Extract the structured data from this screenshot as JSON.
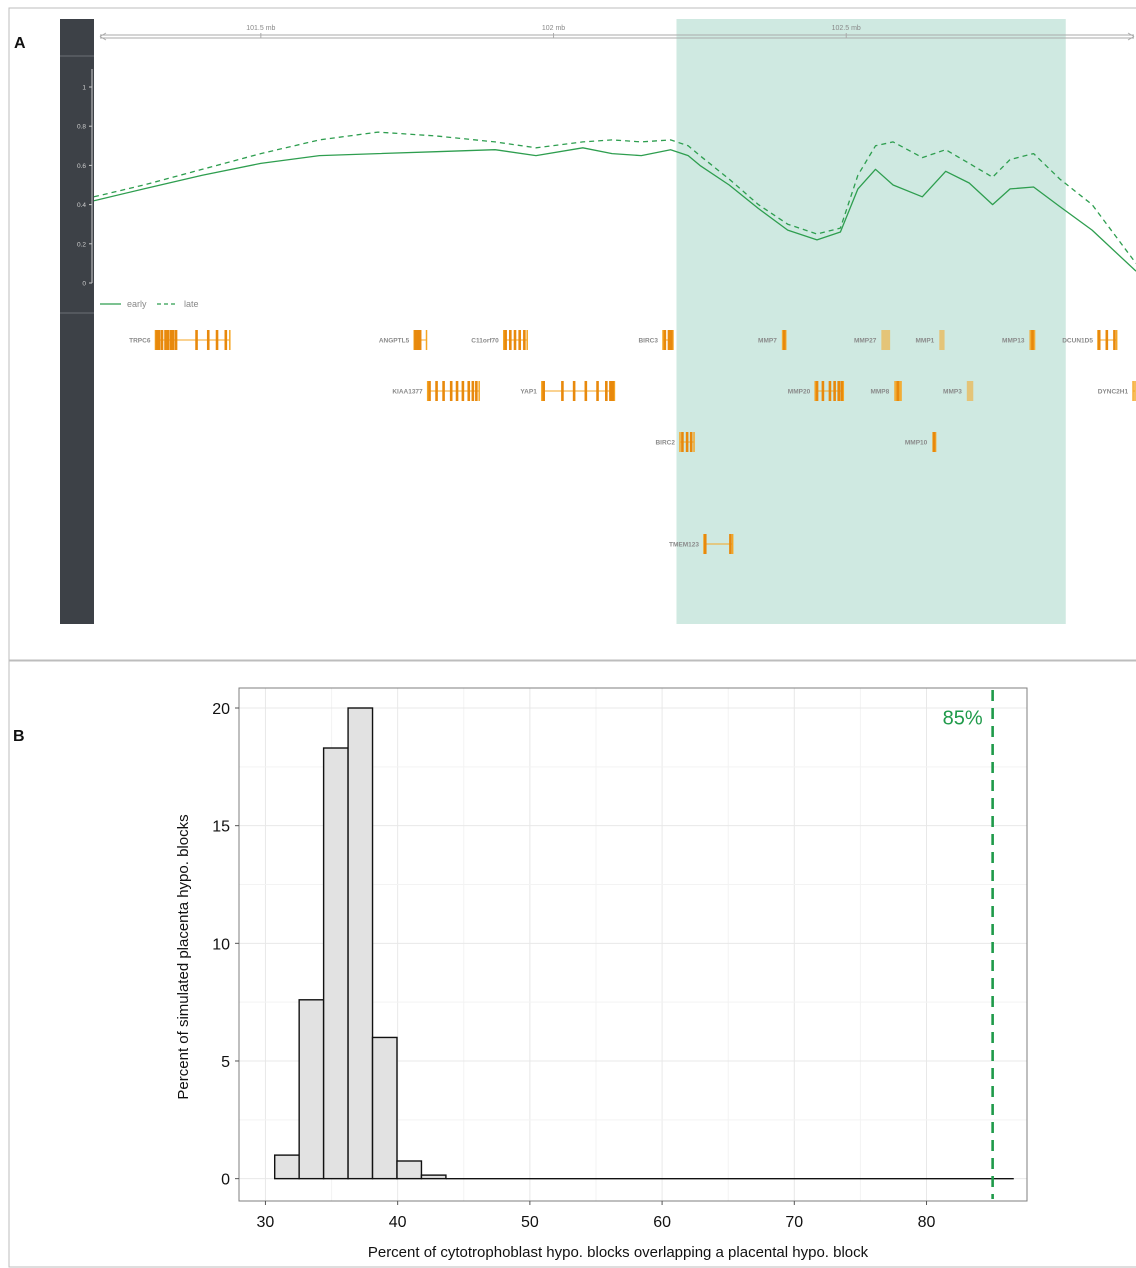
{
  "colors": {
    "line": "#2e9e4f",
    "highlight": "#cfe9e1",
    "track_panel": "#3d4147",
    "gene": "#f5a623",
    "gene_dark": "#e8890c",
    "vline": "#1f9a4a",
    "bar_fill": "#e2e2e2",
    "axis_text": "#888888"
  },
  "panel_a": {
    "label": "A",
    "genome_axis_ticks": [
      "101.5 mb",
      "102 mb",
      "102.5 mb"
    ],
    "y_ticks": [
      "1",
      "0.8",
      "0.6",
      "0.4",
      "0.2",
      "0"
    ],
    "legend": [
      {
        "name": "early",
        "style": "solid"
      },
      {
        "name": "late",
        "style": "dashed"
      }
    ]
  },
  "panel_b": {
    "label": "B"
  },
  "chart_data": [
    {
      "type": "line",
      "xlabel": "",
      "ylabel": "",
      "xunit": "mb",
      "xlim": [
        101.215,
        102.995
      ],
      "ylim": [
        0,
        1
      ],
      "x_ticks": [
        101.5,
        102,
        102.5
      ],
      "highlight_region": [
        102.21,
        102.875
      ],
      "series": [
        {
          "name": "early",
          "style": "solid",
          "x": [
            101.215,
            101.3,
            101.4,
            101.5,
            101.6,
            101.7,
            101.8,
            101.9,
            101.97,
            102.05,
            102.1,
            102.15,
            102.2,
            102.23,
            102.25,
            102.3,
            102.35,
            102.4,
            102.45,
            102.49,
            102.52,
            102.55,
            102.58,
            102.63,
            102.67,
            102.71,
            102.75,
            102.78,
            102.82,
            102.865,
            102.92,
            102.995
          ],
          "values": [
            0.42,
            0.48,
            0.55,
            0.61,
            0.65,
            0.66,
            0.67,
            0.68,
            0.65,
            0.69,
            0.66,
            0.65,
            0.68,
            0.65,
            0.6,
            0.5,
            0.38,
            0.27,
            0.22,
            0.26,
            0.48,
            0.58,
            0.5,
            0.44,
            0.57,
            0.51,
            0.4,
            0.48,
            0.49,
            0.39,
            0.27,
            0.06
          ]
        },
        {
          "name": "late",
          "style": "dashed",
          "x": [
            101.215,
            101.3,
            101.4,
            101.5,
            101.6,
            101.7,
            101.8,
            101.9,
            101.97,
            102.05,
            102.1,
            102.15,
            102.2,
            102.23,
            102.25,
            102.3,
            102.35,
            102.4,
            102.45,
            102.49,
            102.52,
            102.55,
            102.58,
            102.63,
            102.67,
            102.71,
            102.75,
            102.78,
            102.82,
            102.865,
            102.92,
            102.995
          ],
          "values": [
            0.44,
            0.5,
            0.58,
            0.66,
            0.73,
            0.77,
            0.75,
            0.72,
            0.69,
            0.72,
            0.73,
            0.72,
            0.73,
            0.7,
            0.65,
            0.53,
            0.4,
            0.3,
            0.25,
            0.28,
            0.55,
            0.7,
            0.72,
            0.64,
            0.68,
            0.61,
            0.54,
            0.63,
            0.66,
            0.53,
            0.4,
            0.1
          ]
        }
      ]
    },
    {
      "type": "bar",
      "title": "",
      "xlabel": "Percent of cytotrophoblast hypo. blocks overlapping a placental hypo. block",
      "ylabel": "Percent of simulated placenta hypo. blocks",
      "xlim": [
        28,
        87.6
      ],
      "ylim": [
        -0.95,
        20.85
      ],
      "x_ticks": [
        30,
        40,
        50,
        60,
        70,
        80
      ],
      "y_ticks": [
        0,
        5,
        10,
        15,
        20
      ],
      "bin_width": 1.85,
      "bin_starts": [
        30.7,
        32.55,
        34.4,
        36.25,
        38.1,
        39.95,
        41.8
      ],
      "values": [
        1.0,
        7.6,
        18.3,
        20.0,
        6.0,
        0.75,
        0.15
      ],
      "baseline_end": 86.6,
      "reference_line": {
        "x": 85,
        "label": "85%"
      }
    }
  ],
  "genes": [
    {
      "name": "TRPC6",
      "row": 0,
      "start": 101.32,
      "end": 101.447,
      "exons": [
        101.322,
        101.326,
        101.331,
        101.337,
        101.341,
        101.346,
        101.35,
        101.355,
        101.39,
        101.41,
        101.425,
        101.44
      ]
    },
    {
      "name": "ANGPTL5",
      "row": 0,
      "start": 101.762,
      "end": 101.783,
      "exons": [
        101.764,
        101.768,
        101.772
      ]
    },
    {
      "name": "C11orf70",
      "row": 0,
      "start": 101.915,
      "end": 101.955,
      "exons": [
        101.918,
        101.926,
        101.934,
        101.942,
        101.95
      ]
    },
    {
      "name": "BIRC3",
      "row": 0,
      "start": 102.187,
      "end": 102.204,
      "exons": [
        102.19,
        102.197,
        102.201
      ]
    },
    {
      "name": "MMP7",
      "row": 0,
      "start": 102.39,
      "end": 102.398,
      "exons": [
        102.394
      ],
      "solid": true
    },
    {
      "name": "MMP27",
      "row": 0,
      "start": 102.56,
      "end": 102.575,
      "exons": [],
      "solid": true,
      "pale": true
    },
    {
      "name": "MMP1",
      "row": 0,
      "start": 102.659,
      "end": 102.668,
      "exons": [],
      "solid": true,
      "pale": true
    },
    {
      "name": "MMP13",
      "row": 0,
      "start": 102.813,
      "end": 102.823,
      "exons": [
        102.818
      ],
      "solid": true
    },
    {
      "name": "DCUN1D5",
      "row": 0,
      "start": 102.93,
      "end": 102.962,
      "exons": [
        102.932,
        102.945,
        102.958
      ]
    },
    {
      "name": "KIAA1377",
      "row": 1,
      "start": 101.785,
      "end": 101.873,
      "exons": [
        101.788,
        101.8,
        101.812,
        101.825,
        101.835,
        101.845,
        101.855,
        101.862,
        101.868
      ]
    },
    {
      "name": "YAP1",
      "row": 1,
      "start": 101.98,
      "end": 102.104,
      "exons": [
        101.983,
        102.015,
        102.035,
        102.055,
        102.075,
        102.09,
        102.097,
        102.101
      ]
    },
    {
      "name": "MMP20",
      "row": 1,
      "start": 102.447,
      "end": 102.495,
      "exons": [
        102.45,
        102.46,
        102.472,
        102.48,
        102.487,
        102.492
      ]
    },
    {
      "name": "MMP8",
      "row": 1,
      "start": 102.582,
      "end": 102.595,
      "exons": [
        102.588
      ],
      "solid": true
    },
    {
      "name": "MMP3",
      "row": 1,
      "start": 102.706,
      "end": 102.717,
      "exons": [],
      "solid": true,
      "pale": true
    },
    {
      "name": "DYNC2H1",
      "row": 1,
      "start": 102.99,
      "end": 102.995,
      "exons": []
    },
    {
      "name": "BIRC2",
      "row": 2,
      "start": 102.216,
      "end": 102.24,
      "exons": [
        102.22,
        102.228,
        102.235
      ]
    },
    {
      "name": "MMP10",
      "row": 2,
      "start": 102.647,
      "end": 102.654,
      "exons": [
        102.65
      ],
      "solid": true
    },
    {
      "name": "TMEM123",
      "row": 4,
      "start": 102.257,
      "end": 102.306,
      "exons": [
        102.259,
        102.302
      ]
    }
  ]
}
